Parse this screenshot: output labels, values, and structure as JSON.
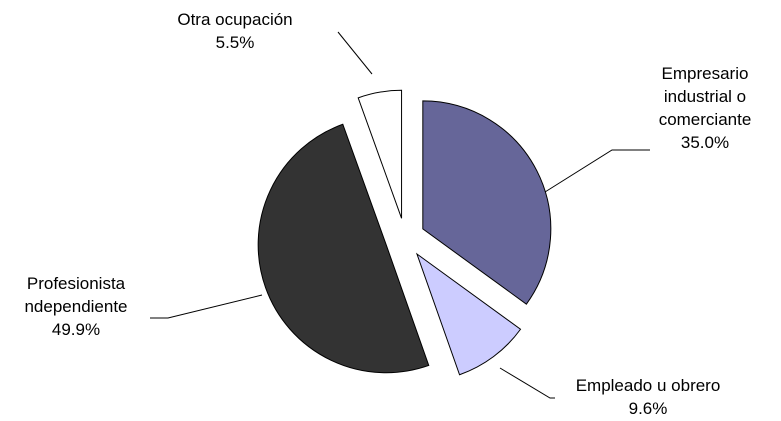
{
  "chart_data": {
    "type": "pie",
    "categories": [
      "Empresario industrial o comerciante",
      "Empleado u obrero",
      "Profesionista ndependiente",
      "Otra ocupación"
    ],
    "values": [
      35.0,
      9.6,
      49.9,
      5.5
    ],
    "value_labels": [
      "35.0%",
      "9.6%",
      "49.9%",
      "5.5%"
    ],
    "colors": [
      "#666699",
      "#ccccff",
      "#333333",
      "#ffffff"
    ]
  }
}
